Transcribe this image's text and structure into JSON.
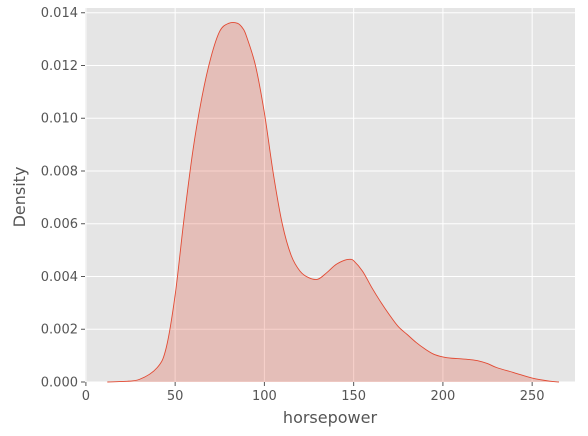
{
  "chart_data": {
    "type": "area",
    "xlabel": "horsepower",
    "ylabel": "Density",
    "xlim": [
      -0.5,
      274
    ],
    "ylim": [
      0,
      0.01418
    ],
    "x_ticks": [
      0,
      50,
      100,
      150,
      200,
      250
    ],
    "y_ticks": [
      0.0,
      0.002,
      0.004,
      0.006,
      0.008,
      0.01,
      0.012,
      0.014
    ],
    "grid": true,
    "series": [
      {
        "x": [
          12,
          20,
          30,
          40,
          45,
          50,
          55,
          60,
          65,
          70,
          75,
          80,
          85,
          88,
          90,
          95,
          100,
          105,
          110,
          115,
          120,
          125,
          130,
          135,
          140,
          145,
          148,
          150,
          155,
          160,
          165,
          170,
          175,
          180,
          185,
          190,
          195,
          200,
          205,
          210,
          215,
          220,
          225,
          230,
          240,
          250,
          260,
          265
        ],
        "y": [
          0.0,
          2e-05,
          0.0001,
          0.00055,
          0.0013,
          0.0033,
          0.0062,
          0.0088,
          0.0108,
          0.0123,
          0.0133,
          0.0136,
          0.0136,
          0.0134,
          0.0131,
          0.012,
          0.0102,
          0.0079,
          0.006,
          0.0048,
          0.0042,
          0.00395,
          0.0039,
          0.00415,
          0.00445,
          0.00462,
          0.00465,
          0.0046,
          0.0042,
          0.0036,
          0.00305,
          0.00255,
          0.0021,
          0.0018,
          0.0015,
          0.00125,
          0.00105,
          0.00095,
          0.0009,
          0.00088,
          0.00085,
          0.0008,
          0.0007,
          0.00055,
          0.00035,
          0.00015,
          3e-05,
          0.0
        ]
      }
    ],
    "colors": {
      "line": "#E24A33",
      "fill": "#E24A33",
      "background": "#E5E5E5",
      "grid": "#FFFFFF",
      "text": "#555555"
    }
  }
}
